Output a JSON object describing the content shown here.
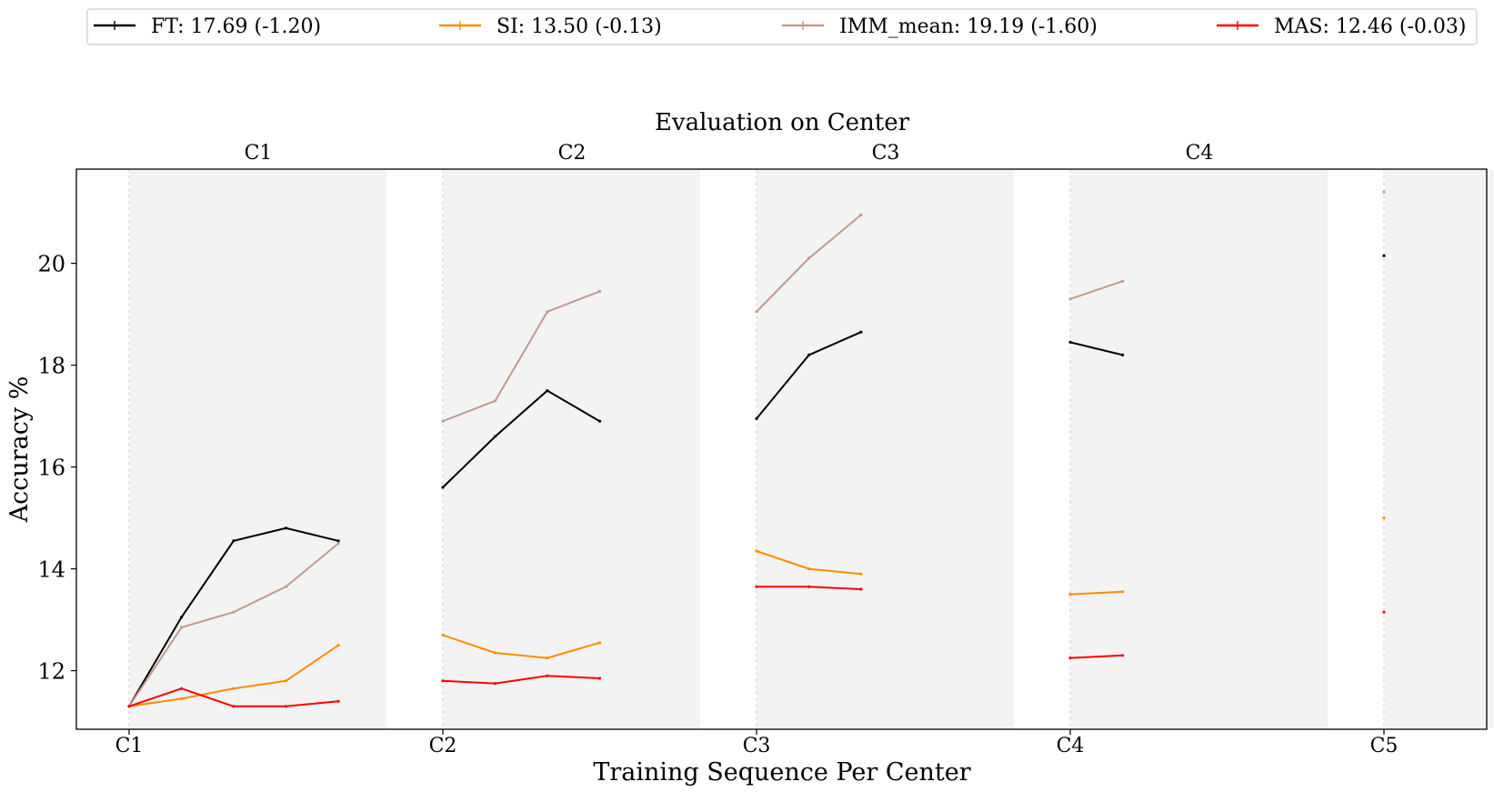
{
  "chart_data": {
    "type": "line",
    "title": "Evaluation on Center",
    "xlabel": "Training Sequence Per Center",
    "ylabel": "Accuracy %",
    "ylim": [
      10.85,
      21.85
    ],
    "yticks": [
      "12",
      "14",
      "16",
      "18",
      "20"
    ],
    "xticks": [
      "C1",
      "C2",
      "C3",
      "C4",
      "C5"
    ],
    "panels": [
      "C1",
      "C2",
      "C3",
      "C4",
      "C5"
    ],
    "legend_position": "top (above plot, horizontal)",
    "series": [
      {
        "name": "FT: 17.69 (-1.20)",
        "color": "#000000",
        "panels": [
          {
            "x": [
              0,
              0.167,
              0.333,
              0.5,
              0.667
            ],
            "y": [
              11.3,
              13.05,
              14.55,
              14.8,
              14.55
            ]
          },
          {
            "x": [
              1,
              1.167,
              1.333,
              1.5
            ],
            "y": [
              15.6,
              16.6,
              17.5,
              16.9
            ]
          },
          {
            "x": [
              2,
              2.167,
              2.333
            ],
            "y": [
              16.95,
              18.2,
              18.65
            ]
          },
          {
            "x": [
              3,
              3.167
            ],
            "y": [
              18.45,
              18.2
            ]
          },
          {
            "x": [
              4
            ],
            "y": [
              20.15
            ]
          }
        ]
      },
      {
        "name": "SI: 13.50 (-0.13)",
        "color": "#ff8c00",
        "panels": [
          {
            "x": [
              0,
              0.167,
              0.333,
              0.5,
              0.667
            ],
            "y": [
              11.3,
              11.45,
              11.65,
              11.8,
              12.5
            ]
          },
          {
            "x": [
              1,
              1.167,
              1.333,
              1.5
            ],
            "y": [
              12.7,
              12.35,
              12.25,
              12.55
            ]
          },
          {
            "x": [
              2,
              2.167,
              2.333
            ],
            "y": [
              14.35,
              14.0,
              13.9
            ]
          },
          {
            "x": [
              3,
              3.167
            ],
            "y": [
              13.5,
              13.55
            ]
          },
          {
            "x": [
              4
            ],
            "y": [
              15.0
            ]
          }
        ]
      },
      {
        "name": "IMM_mean: 19.19 (-1.60)",
        "color": "#c19a8f",
        "panels": [
          {
            "x": [
              0,
              0.167,
              0.333,
              0.5,
              0.667
            ],
            "y": [
              11.3,
              12.85,
              13.15,
              13.65,
              14.5
            ]
          },
          {
            "x": [
              1,
              1.167,
              1.333,
              1.5
            ],
            "y": [
              16.9,
              17.3,
              19.05,
              19.45
            ]
          },
          {
            "x": [
              2,
              2.167,
              2.333
            ],
            "y": [
              19.05,
              20.1,
              20.95
            ]
          },
          {
            "x": [
              3,
              3.167
            ],
            "y": [
              19.3,
              19.65
            ]
          },
          {
            "x": [
              4
            ],
            "y": [
              21.4
            ]
          }
        ]
      },
      {
        "name": "MAS: 12.46 (-0.03)",
        "color": "#ff0000",
        "panels": [
          {
            "x": [
              0,
              0.167,
              0.333,
              0.5,
              0.667
            ],
            "y": [
              11.3,
              11.65,
              11.3,
              11.3,
              11.4
            ]
          },
          {
            "x": [
              1,
              1.167,
              1.333,
              1.5
            ],
            "y": [
              11.8,
              11.75,
              11.9,
              11.85
            ]
          },
          {
            "x": [
              2,
              2.167,
              2.333
            ],
            "y": [
              13.65,
              13.65,
              13.6
            ]
          },
          {
            "x": [
              3,
              3.167
            ],
            "y": [
              12.25,
              12.3
            ]
          },
          {
            "x": [
              4
            ],
            "y": [
              13.15
            ]
          }
        ]
      }
    ]
  }
}
